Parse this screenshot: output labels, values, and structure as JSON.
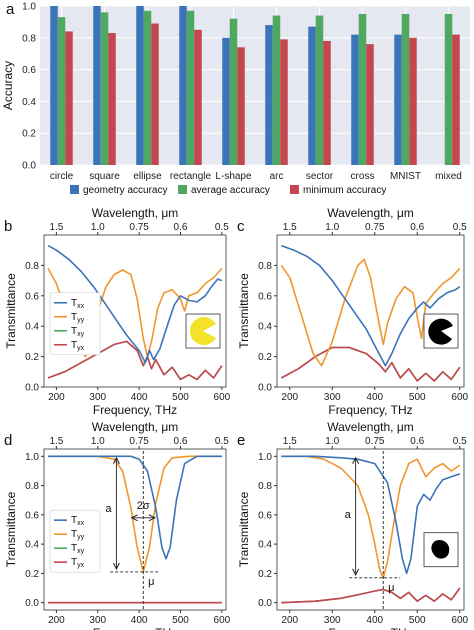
{
  "colors": {
    "blue": "#3b74b8",
    "green": "#4fa860",
    "red": "#c4464f",
    "orange": "#f0962e",
    "bargrid_bg": "#e5e8f1"
  },
  "panels": {
    "a": "a",
    "b": "b",
    "c": "c",
    "d": "d",
    "e": "e"
  },
  "legend_spectra": {
    "txx": "Txx",
    "tyy": "Tyy",
    "txy": "Txy",
    "tyx": "Tyx"
  },
  "annotations": {
    "a": "a",
    "two_sigma": "2σ",
    "mu": "μ"
  },
  "chart_data": [
    {
      "id": "a",
      "type": "bar",
      "ylabel": "Accuracy",
      "ylim": [
        0.0,
        1.0
      ],
      "yticks": [
        "0.0",
        "0.2",
        "0.4",
        "0.6",
        "0.8",
        "1.0"
      ],
      "categories": [
        "circle",
        "square",
        "ellipse",
        "rectangle",
        "L-shape",
        "arc",
        "sector",
        "cross",
        "MNIST",
        "mixed"
      ],
      "series": [
        {
          "name": "geometry accuracy",
          "color": "blue",
          "values": [
            1.0,
            1.0,
            1.0,
            1.0,
            0.8,
            0.88,
            0.87,
            0.82,
            0.82,
            null
          ]
        },
        {
          "name": "average accuracy",
          "color": "green",
          "values": [
            0.93,
            0.96,
            0.97,
            0.97,
            0.92,
            0.94,
            0.94,
            0.95,
            0.95,
            0.95
          ]
        },
        {
          "name": "minimum accuracy",
          "color": "red",
          "values": [
            0.84,
            0.83,
            0.89,
            0.85,
            0.74,
            0.79,
            0.78,
            0.76,
            0.8,
            0.82
          ]
        }
      ],
      "grid": true,
      "legend": "bottom"
    },
    {
      "id": "b",
      "type": "line",
      "xlabel": "Frequency, THz",
      "ylabel": "Transmittance",
      "top_xlabel": "Wavelength, μm",
      "xlim": [
        170,
        610
      ],
      "ylim": [
        0.0,
        1.0
      ],
      "xticks": [
        "200",
        "300",
        "400",
        "500",
        "600"
      ],
      "yticks": [
        "0.0",
        "0.2",
        "0.4",
        "0.6",
        "0.8"
      ],
      "top_ticks": [
        {
          "label": "1.5",
          "freq": 200
        },
        {
          "label": "1.0",
          "freq": 300
        },
        {
          "label": "0.75",
          "freq": 400
        },
        {
          "label": "0.6",
          "freq": 500
        },
        {
          "label": "0.5",
          "freq": 600
        }
      ],
      "legend": "left",
      "inset": "pacman-yellow",
      "series": [
        {
          "name": "Txx",
          "color": "blue",
          "x": [
            180,
            200,
            230,
            260,
            290,
            310,
            340,
            370,
            400,
            415,
            425,
            435,
            450,
            470,
            485,
            500,
            520,
            540,
            560,
            575,
            590,
            600
          ],
          "y": [
            0.93,
            0.9,
            0.84,
            0.76,
            0.66,
            0.58,
            0.46,
            0.34,
            0.24,
            0.16,
            0.24,
            0.18,
            0.25,
            0.42,
            0.54,
            0.6,
            0.57,
            0.56,
            0.6,
            0.66,
            0.71,
            0.7
          ]
        },
        {
          "name": "Tyy",
          "color": "orange",
          "x": [
            180,
            200,
            225,
            250,
            270,
            285,
            300,
            320,
            340,
            360,
            380,
            395,
            410,
            420,
            430,
            445,
            460,
            480,
            500,
            510,
            520,
            540,
            560,
            580,
            600
          ],
          "y": [
            0.78,
            0.68,
            0.48,
            0.28,
            0.2,
            0.3,
            0.5,
            0.66,
            0.74,
            0.77,
            0.74,
            0.58,
            0.32,
            0.2,
            0.3,
            0.52,
            0.62,
            0.64,
            0.58,
            0.5,
            0.6,
            0.62,
            0.68,
            0.72,
            0.78
          ]
        },
        {
          "name": "Txy",
          "color": "green",
          "x": [
            180,
            220,
            260,
            300,
            340,
            370,
            395,
            410,
            420,
            430,
            440,
            460,
            480,
            500,
            520,
            540,
            560,
            580,
            600
          ],
          "y": [
            0.06,
            0.1,
            0.16,
            0.22,
            0.28,
            0.3,
            0.24,
            0.14,
            0.2,
            0.12,
            0.18,
            0.08,
            0.13,
            0.05,
            0.08,
            0.05,
            0.11,
            0.06,
            0.14
          ]
        },
        {
          "name": "Tyx",
          "color": "red",
          "x": [
            180,
            220,
            260,
            300,
            340,
            370,
            395,
            410,
            420,
            430,
            440,
            460,
            480,
            500,
            520,
            540,
            560,
            580,
            600
          ],
          "y": [
            0.06,
            0.1,
            0.16,
            0.22,
            0.28,
            0.3,
            0.24,
            0.14,
            0.2,
            0.12,
            0.18,
            0.08,
            0.13,
            0.05,
            0.08,
            0.05,
            0.11,
            0.06,
            0.14
          ]
        }
      ]
    },
    {
      "id": "c",
      "type": "line",
      "xlabel": "Frequency, THz",
      "ylabel": "Transmittance",
      "top_xlabel": "Wavelength, μm",
      "xlim": [
        170,
        610
      ],
      "ylim": [
        0.0,
        1.0
      ],
      "xticks": [
        "200",
        "300",
        "400",
        "500",
        "600"
      ],
      "yticks": [
        "0.0",
        "0.2",
        "0.4",
        "0.6",
        "0.8"
      ],
      "top_ticks": [
        {
          "label": "1.5",
          "freq": 200
        },
        {
          "label": "1.0",
          "freq": 300
        },
        {
          "label": "0.75",
          "freq": 400
        },
        {
          "label": "0.6",
          "freq": 500
        },
        {
          "label": "0.5",
          "freq": 600
        }
      ],
      "inset": "pacman-black",
      "series": [
        {
          "name": "Txx",
          "color": "blue",
          "x": [
            180,
            210,
            240,
            270,
            300,
            340,
            380,
            410,
            425,
            440,
            460,
            480,
            500,
            515,
            530,
            550,
            570,
            590,
            600
          ],
          "y": [
            0.93,
            0.9,
            0.86,
            0.8,
            0.7,
            0.54,
            0.38,
            0.22,
            0.14,
            0.22,
            0.35,
            0.45,
            0.52,
            0.56,
            0.52,
            0.58,
            0.62,
            0.64,
            0.66
          ]
        },
        {
          "name": "Tyy",
          "color": "orange",
          "x": [
            180,
            200,
            230,
            255,
            275,
            300,
            330,
            360,
            375,
            390,
            410,
            420,
            430,
            450,
            470,
            490,
            500,
            510,
            520,
            540,
            560,
            580,
            600
          ],
          "y": [
            0.8,
            0.72,
            0.45,
            0.22,
            0.14,
            0.3,
            0.58,
            0.8,
            0.84,
            0.72,
            0.42,
            0.28,
            0.42,
            0.58,
            0.66,
            0.62,
            0.46,
            0.32,
            0.55,
            0.62,
            0.68,
            0.72,
            0.78
          ]
        },
        {
          "name": "Txy",
          "color": "green",
          "x": [
            180,
            220,
            260,
            300,
            340,
            380,
            410,
            425,
            440,
            460,
            480,
            500,
            520,
            540,
            560,
            580,
            600
          ],
          "y": [
            0.06,
            0.12,
            0.2,
            0.26,
            0.26,
            0.22,
            0.15,
            0.1,
            0.16,
            0.06,
            0.12,
            0.04,
            0.09,
            0.04,
            0.1,
            0.05,
            0.13
          ]
        },
        {
          "name": "Tyx",
          "color": "red",
          "x": [
            180,
            220,
            260,
            300,
            340,
            380,
            410,
            425,
            440,
            460,
            480,
            500,
            520,
            540,
            560,
            580,
            600
          ],
          "y": [
            0.06,
            0.12,
            0.2,
            0.26,
            0.26,
            0.22,
            0.15,
            0.1,
            0.16,
            0.06,
            0.12,
            0.04,
            0.09,
            0.04,
            0.1,
            0.05,
            0.13
          ]
        }
      ]
    },
    {
      "id": "d",
      "type": "line",
      "xlabel": "Frequency, THz",
      "ylabel": "Transmittance",
      "top_xlabel": "Wavelength, μm",
      "xlim": [
        170,
        610
      ],
      "ylim": [
        -0.05,
        1.05
      ],
      "xticks": [
        "200",
        "300",
        "400",
        "500",
        "600"
      ],
      "yticks": [
        "0.0",
        "0.2",
        "0.4",
        "0.6",
        "0.8",
        "1.0"
      ],
      "top_ticks": [
        {
          "label": "1.5",
          "freq": 200
        },
        {
          "label": "1.0",
          "freq": 300
        },
        {
          "label": "0.75",
          "freq": 400
        },
        {
          "label": "0.6",
          "freq": 500
        },
        {
          "label": "0.5",
          "freq": 600
        }
      ],
      "legend": "left",
      "series": [
        {
          "name": "Txx",
          "color": "blue",
          "x": [
            180,
            380,
            400,
            420,
            440,
            455,
            465,
            475,
            490,
            510,
            540,
            600
          ],
          "y": [
            1.0,
            1.0,
            0.98,
            0.9,
            0.65,
            0.38,
            0.3,
            0.38,
            0.7,
            0.95,
            1.0,
            1.0
          ]
        },
        {
          "name": "Tyy",
          "color": "orange",
          "x": [
            180,
            300,
            340,
            360,
            380,
            395,
            410,
            425,
            440,
            460,
            480,
            520,
            600
          ],
          "y": [
            1.0,
            1.0,
            0.98,
            0.9,
            0.65,
            0.38,
            0.21,
            0.38,
            0.68,
            0.92,
            0.99,
            1.0,
            1.0
          ]
        },
        {
          "name": "Txy",
          "color": "green",
          "x": [
            180,
            600
          ],
          "y": [
            0.0,
            0.0
          ]
        },
        {
          "name": "Tyx",
          "color": "red",
          "x": [
            180,
            600
          ],
          "y": [
            0.0,
            0.0
          ]
        }
      ]
    },
    {
      "id": "e",
      "type": "line",
      "xlabel": "Frequency, THz",
      "ylabel": "Transmittance",
      "top_xlabel": "Wavelength, μm",
      "xlim": [
        170,
        610
      ],
      "ylim": [
        -0.05,
        1.05
      ],
      "xticks": [
        "200",
        "300",
        "400",
        "500",
        "600"
      ],
      "yticks": [
        "0.0",
        "0.2",
        "0.4",
        "0.6",
        "0.8",
        "1.0"
      ],
      "top_ticks": [
        {
          "label": "1.5",
          "freq": 200
        },
        {
          "label": "1.0",
          "freq": 300
        },
        {
          "label": "0.75",
          "freq": 400
        },
        {
          "label": "0.6",
          "freq": 500
        },
        {
          "label": "0.5",
          "freq": 600
        }
      ],
      "inset": "blob-black",
      "series": [
        {
          "name": "Txx",
          "color": "blue",
          "x": [
            180,
            260,
            320,
            360,
            400,
            430,
            450,
            465,
            475,
            485,
            500,
            515,
            530,
            545,
            560,
            580,
            600
          ],
          "y": [
            1.0,
            1.0,
            0.99,
            0.98,
            0.95,
            0.82,
            0.55,
            0.3,
            0.2,
            0.3,
            0.66,
            0.74,
            0.7,
            0.78,
            0.84,
            0.86,
            0.88
          ]
        },
        {
          "name": "Tyy",
          "color": "orange",
          "x": [
            180,
            240,
            280,
            320,
            360,
            385,
            400,
            412,
            420,
            430,
            445,
            460,
            480,
            500,
            520,
            540,
            560,
            580,
            600
          ],
          "y": [
            1.0,
            1.0,
            0.98,
            0.92,
            0.8,
            0.6,
            0.4,
            0.22,
            0.17,
            0.28,
            0.55,
            0.8,
            0.95,
            0.98,
            0.86,
            0.92,
            0.95,
            0.9,
            0.94
          ]
        },
        {
          "name": "Txy",
          "color": "green",
          "x": [
            180,
            260,
            320,
            370,
            400,
            420,
            440,
            460,
            480,
            500,
            520,
            540,
            560,
            580,
            600
          ],
          "y": [
            0.0,
            0.01,
            0.03,
            0.06,
            0.08,
            0.09,
            0.07,
            0.03,
            0.07,
            0.01,
            0.05,
            0.01,
            0.06,
            0.02,
            0.1
          ]
        },
        {
          "name": "Tyx",
          "color": "red",
          "x": [
            180,
            260,
            320,
            370,
            400,
            420,
            440,
            460,
            480,
            500,
            520,
            540,
            560,
            580,
            600
          ],
          "y": [
            0.0,
            0.01,
            0.03,
            0.06,
            0.08,
            0.09,
            0.07,
            0.03,
            0.07,
            0.01,
            0.05,
            0.01,
            0.06,
            0.02,
            0.1
          ]
        }
      ]
    }
  ]
}
